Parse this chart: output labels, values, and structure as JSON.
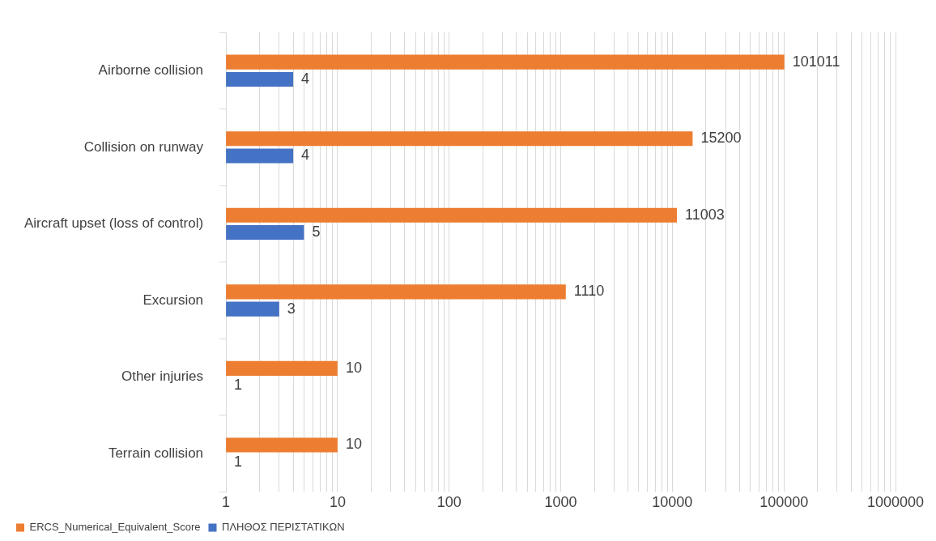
{
  "chart_data": {
    "type": "bar",
    "orientation": "horizontal",
    "log": "x",
    "categories": [
      "Airborne collision",
      "Collision on runway",
      "Aircraft upset (loss of control)",
      "Excursion",
      "Other injuries",
      "Terrain collision"
    ],
    "series": [
      {
        "name": "ERCS_Numerical_Equivalent_Score",
        "color": "#ed7d31",
        "values": [
          101011,
          15200,
          11003,
          1110,
          10,
          10
        ]
      },
      {
        "name": "ΠΛΗΘΟΣ ΠΕΡΙΣΤΑΤΙΚΩΝ",
        "color": "#4472c4",
        "values": [
          4,
          4,
          5,
          3,
          1,
          1
        ]
      }
    ],
    "xlim": [
      1,
      1000000
    ],
    "xticks": [
      1,
      {
        "value": 2,
        "label": null
      },
      {
        "value": 3,
        "label": null
      },
      {
        "value": 4,
        "label": null
      },
      {
        "value": 5,
        "label": null
      },
      {
        "value": 6,
        "label": null
      },
      {
        "value": 7,
        "label": null
      },
      {
        "value": 8,
        "label": null
      },
      {
        "value": 9,
        "label": null
      },
      10,
      {
        "value": 20,
        "label": null
      },
      {
        "value": 30,
        "label": null
      },
      {
        "value": 40,
        "label": null
      },
      {
        "value": 50,
        "label": null
      },
      {
        "value": 60,
        "label": null
      },
      {
        "value": 70,
        "label": null
      },
      {
        "value": 80,
        "label": null
      },
      {
        "value": 90,
        "label": null
      },
      100,
      {
        "value": 200,
        "label": null
      },
      {
        "value": 300,
        "label": null
      },
      {
        "value": 400,
        "label": null
      },
      {
        "value": 500,
        "label": null
      },
      {
        "value": 600,
        "label": null
      },
      {
        "value": 700,
        "label": null
      },
      {
        "value": 800,
        "label": null
      },
      {
        "value": 900,
        "label": null
      },
      1000,
      {
        "value": 2000,
        "label": null
      },
      {
        "value": 3000,
        "label": null
      },
      {
        "value": 4000,
        "label": null
      },
      {
        "value": 5000,
        "label": null
      },
      {
        "value": 6000,
        "label": null
      },
      {
        "value": 7000,
        "label": null
      },
      {
        "value": 8000,
        "label": null
      },
      {
        "value": 9000,
        "label": null
      },
      10000,
      {
        "value": 20000,
        "label": null
      },
      {
        "value": 30000,
        "label": null
      },
      {
        "value": 40000,
        "label": null
      },
      {
        "value": 50000,
        "label": null
      },
      {
        "value": 60000,
        "label": null
      },
      {
        "value": 70000,
        "label": null
      },
      {
        "value": 80000,
        "label": null
      },
      {
        "value": 90000,
        "label": null
      },
      100000,
      {
        "value": 200000,
        "label": null
      },
      {
        "value": 300000,
        "label": null
      },
      {
        "value": 400000,
        "label": null
      },
      {
        "value": 500000,
        "label": null
      },
      {
        "value": 600000,
        "label": null
      },
      {
        "value": 700000,
        "label": null
      },
      {
        "value": 800000,
        "label": null
      },
      {
        "value": 900000,
        "label": null
      },
      1000000
    ],
    "grid": "x",
    "legend": "bottom left",
    "data_labels": true
  }
}
